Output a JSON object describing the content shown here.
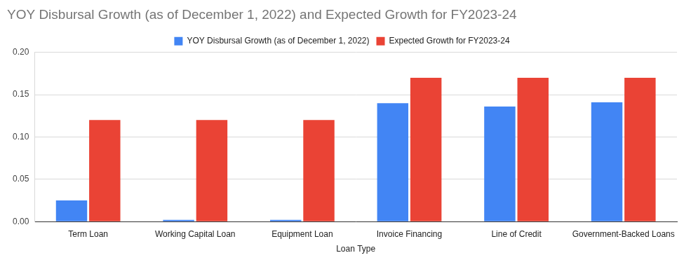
{
  "chart_data": {
    "type": "bar",
    "title": "YOY Disbursal Growth (as of December 1, 2022) and Expected Growth for FY2023-24",
    "x_label": "Loan Type",
    "categories": [
      "Term Loan",
      "Working Capital Loan",
      "Equipment Loan",
      "Invoice Financing",
      "Line of Credit",
      "Government-Backed Loans"
    ],
    "series": [
      {
        "name": "YOY Disbursal Growth (as of December 1, 2022)",
        "color": "#4285f4",
        "values": [
          0.025,
          0.002,
          0.002,
          0.14,
          0.136,
          0.141
        ]
      },
      {
        "name": "Expected Growth for FY2023-24",
        "color": "#ea4335",
        "values": [
          0.12,
          0.12,
          0.12,
          0.17,
          0.17,
          0.17
        ]
      }
    ],
    "ylim": [
      0,
      0.2
    ],
    "yticks": [
      {
        "value": 0,
        "label": "0.00"
      },
      0.05,
      {
        "value": 0.1,
        "label": "0.10"
      },
      0.15,
      {
        "value": 0.2,
        "label": "0.20"
      }
    ],
    "grid": true,
    "legend": "top"
  }
}
